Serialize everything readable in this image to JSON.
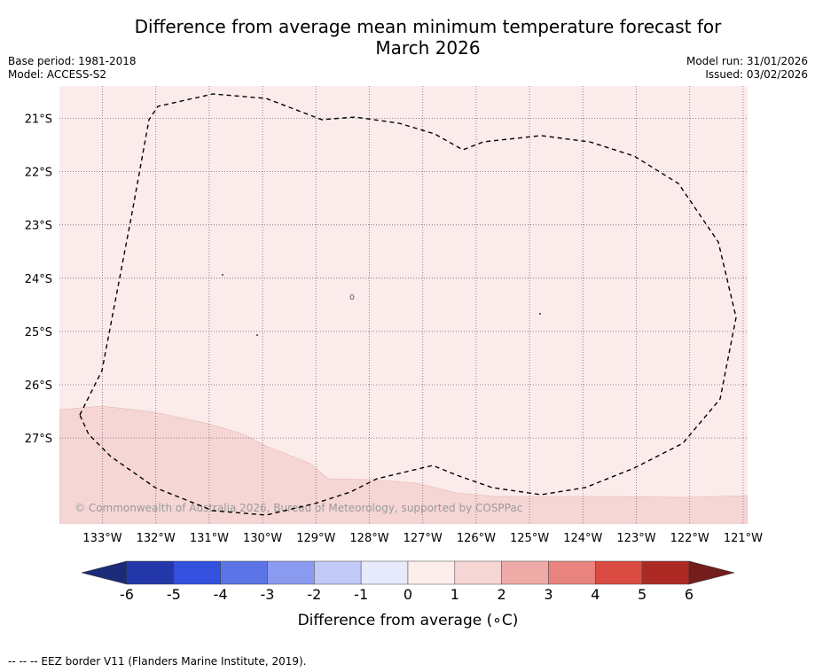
{
  "title": {
    "line1": "Difference from average mean minimum temperature forecast for",
    "line2": "March 2026"
  },
  "meta_left": {
    "base_period": "Base period: 1981-2018",
    "model": "Model: ACCESS-S2"
  },
  "meta_right": {
    "model_run": "Model run: 31/01/2026",
    "issued": "Issued: 03/02/2026"
  },
  "map": {
    "lon_labels": [
      "133°W",
      "132°W",
      "131°W",
      "130°W",
      "129°W",
      "128°W",
      "127°W",
      "126°W",
      "125°W",
      "124°W",
      "123°W",
      "122°W",
      "121°W"
    ],
    "lat_labels": [
      "21°S",
      "22°S",
      "23°S",
      "24°S",
      "25°S",
      "26°S",
      "27°S"
    ],
    "copyright": "© Commonwealth of Australia 2026, Bureau of Meteorology, supported by COSPPac",
    "regions": [
      {
        "name": "0-1",
        "color": "#fbeceb"
      },
      {
        "name": "1-2",
        "color": "#f5d6d5"
      }
    ]
  },
  "colorbar": {
    "label": "Difference from average (∘C)",
    "ticks": [
      "-6",
      "-5",
      "-4",
      "-3",
      "-2",
      "-1",
      "0",
      "1",
      "2",
      "3",
      "4",
      "5",
      "6"
    ],
    "under_color": "#1b2b7a",
    "over_color": "#731d1d",
    "colors": [
      "#2337a8",
      "#3350de",
      "#5b74e6",
      "#8a9bef",
      "#c1c9f6",
      "#e7eafb",
      "#fdeeec",
      "#f6d6d4",
      "#eeaaa6",
      "#e8837d",
      "#d94a40",
      "#ad2a24"
    ]
  },
  "footnote": "--  --  -- EEZ border V11 (Flanders Marine Institute, 2019)."
}
